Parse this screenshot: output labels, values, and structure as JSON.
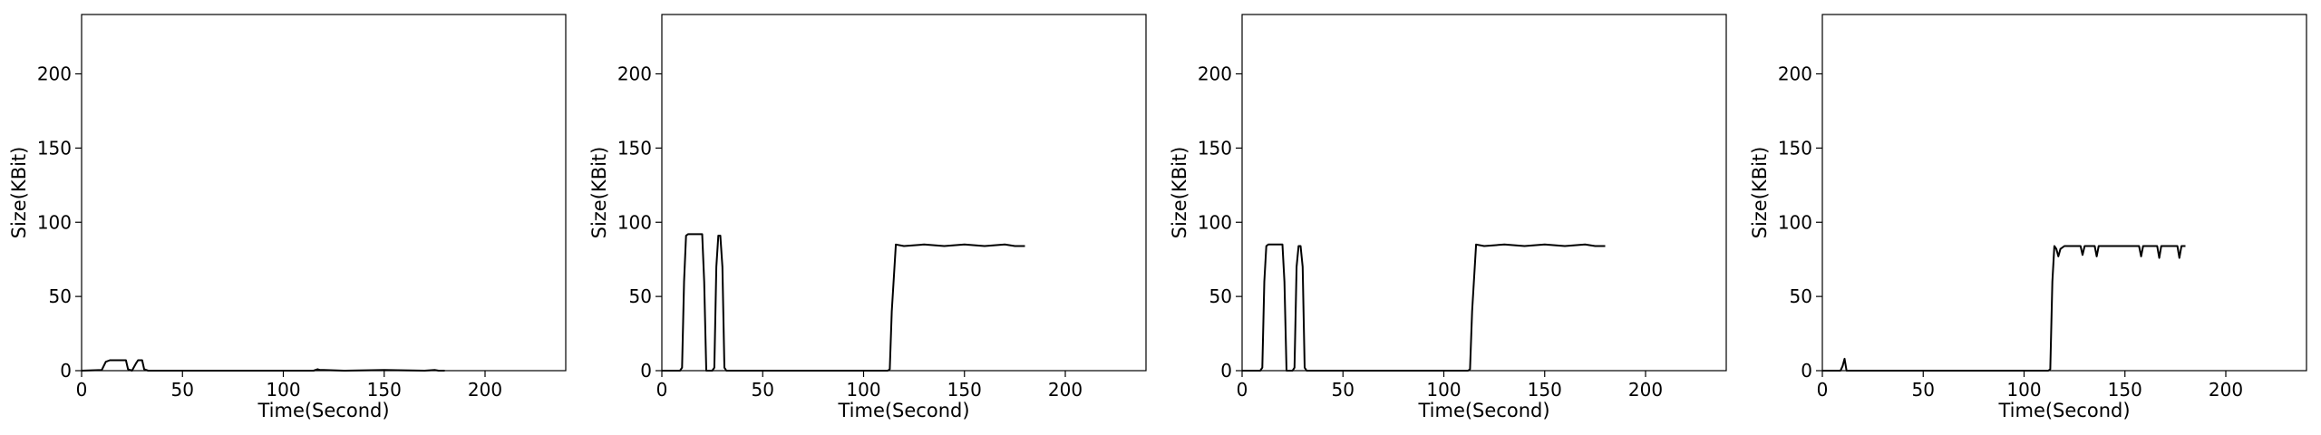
{
  "chart_data": [
    {
      "type": "line",
      "xlabel": "Time(Second)",
      "ylabel": "Size(KBit)",
      "xlim": [
        0,
        240
      ],
      "ylim": [
        0,
        240
      ],
      "xticks": [
        0,
        50,
        100,
        150,
        200
      ],
      "yticks": [
        0,
        50,
        100,
        150,
        200
      ],
      "grid": false,
      "color": "#000000",
      "series": [
        {
          "x": [
            0,
            10,
            12,
            14,
            22,
            23,
            25,
            27,
            28,
            30,
            31,
            33,
            35,
            60,
            100,
            115,
            117,
            118,
            120,
            130,
            150,
            170,
            175,
            177,
            178,
            180
          ],
          "y": [
            0,
            0.5,
            6,
            7,
            7,
            1,
            0,
            5,
            7,
            7,
            1,
            0,
            0,
            0,
            0,
            0,
            1,
            0.5,
            0.5,
            0,
            0.5,
            0,
            0.5,
            0,
            0,
            0
          ]
        }
      ]
    },
    {
      "type": "line",
      "xlabel": "Time(Second)",
      "ylabel": "Size(KBit)",
      "xlim": [
        0,
        240
      ],
      "ylim": [
        0,
        240
      ],
      "xticks": [
        0,
        50,
        100,
        150,
        200
      ],
      "yticks": [
        0,
        50,
        100,
        150,
        200
      ],
      "grid": false,
      "color": "#000000",
      "series": [
        {
          "x": [
            0,
            9,
            10,
            11,
            12,
            13,
            20,
            21,
            22,
            25,
            26,
            27,
            28,
            29,
            30,
            31,
            32,
            40,
            60,
            80,
            100,
            112,
            113,
            114,
            116,
            120,
            130,
            140,
            150,
            160,
            170,
            175,
            180
          ],
          "y": [
            0,
            0,
            2,
            60,
            91,
            92,
            92,
            60,
            0,
            0,
            2,
            70,
            91,
            91,
            70,
            2,
            0,
            0,
            0,
            0,
            0,
            0,
            1,
            40,
            85,
            84,
            85,
            84,
            85,
            84,
            85,
            84,
            84
          ]
        }
      ]
    },
    {
      "type": "line",
      "xlabel": "Time(Second)",
      "ylabel": "Size(KBit)",
      "xlim": [
        0,
        240
      ],
      "ylim": [
        0,
        240
      ],
      "xticks": [
        0,
        50,
        100,
        150,
        200
      ],
      "yticks": [
        0,
        50,
        100,
        150,
        200
      ],
      "grid": false,
      "color": "#000000",
      "series": [
        {
          "x": [
            0,
            9,
            10,
            11,
            12,
            13,
            20,
            21,
            22,
            25,
            26,
            27,
            28,
            29,
            30,
            31,
            32,
            40,
            60,
            80,
            100,
            112,
            113,
            114,
            116,
            120,
            130,
            140,
            150,
            160,
            170,
            175,
            180
          ],
          "y": [
            0,
            0,
            2,
            60,
            84,
            85,
            85,
            60,
            0,
            0,
            2,
            70,
            84,
            84,
            70,
            2,
            0,
            0,
            0,
            0,
            0,
            0,
            1,
            40,
            85,
            84,
            85,
            84,
            85,
            84,
            85,
            84,
            84
          ]
        }
      ]
    },
    {
      "type": "line",
      "xlabel": "Time(Second)",
      "ylabel": "Size(KBit)",
      "xlim": [
        0,
        240
      ],
      "ylim": [
        0,
        240
      ],
      "xticks": [
        0,
        50,
        100,
        150,
        200
      ],
      "yticks": [
        0,
        50,
        100,
        150,
        200
      ],
      "grid": false,
      "color": "#000000",
      "series": [
        {
          "x": [
            0,
            9,
            10,
            11,
            12,
            20,
            40,
            60,
            80,
            100,
            112,
            113,
            114,
            115,
            116,
            117,
            118,
            120,
            125,
            128,
            129,
            130,
            135,
            136,
            137,
            140,
            150,
            157,
            158,
            159,
            162,
            166,
            167,
            168,
            172,
            176,
            177,
            178,
            180
          ],
          "y": [
            0,
            0,
            3,
            8,
            0,
            0,
            0,
            0,
            0,
            0,
            0,
            1,
            60,
            84,
            82,
            77,
            82,
            84,
            84,
            84,
            78,
            84,
            84,
            77,
            84,
            84,
            84,
            84,
            77,
            84,
            84,
            84,
            76,
            84,
            84,
            84,
            76,
            84,
            84
          ]
        }
      ]
    }
  ]
}
